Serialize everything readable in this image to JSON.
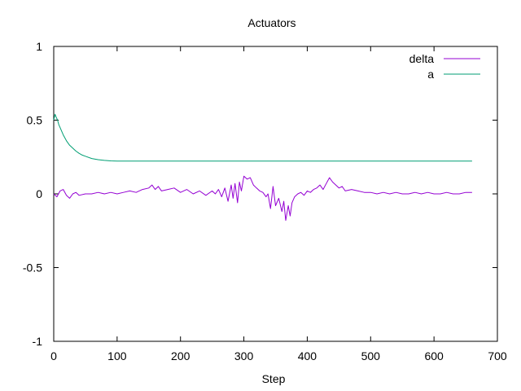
{
  "chart_data": {
    "type": "line",
    "title": "Actuators",
    "xlabel": "Step",
    "ylabel": "",
    "xlim": [
      0,
      700
    ],
    "ylim": [
      -1,
      1
    ],
    "xticks": [
      0,
      100,
      200,
      300,
      400,
      500,
      600,
      700
    ],
    "yticks": [
      -1,
      -0.5,
      0,
      0.5,
      1
    ],
    "xtick_labels": [
      "0",
      "100",
      "200",
      "300",
      "400",
      "500",
      "600",
      "700"
    ],
    "ytick_labels": [
      "-1",
      "-0.5",
      "0",
      "0.5",
      "1"
    ],
    "grid": false,
    "legend_position": "top-right",
    "series": [
      {
        "name": "delta",
        "color": "#9400d3",
        "x": [
          0,
          5,
          10,
          15,
          20,
          25,
          30,
          35,
          40,
          50,
          60,
          70,
          80,
          90,
          100,
          110,
          120,
          130,
          140,
          150,
          155,
          160,
          165,
          170,
          180,
          190,
          200,
          210,
          220,
          230,
          240,
          250,
          255,
          260,
          265,
          270,
          275,
          280,
          283,
          286,
          290,
          293,
          296,
          300,
          305,
          310,
          315,
          320,
          325,
          330,
          335,
          338,
          342,
          346,
          350,
          355,
          360,
          363,
          366,
          370,
          373,
          376,
          380,
          385,
          390,
          395,
          400,
          405,
          410,
          415,
          420,
          425,
          430,
          435,
          440,
          445,
          450,
          455,
          460,
          470,
          480,
          490,
          500,
          510,
          520,
          530,
          540,
          550,
          560,
          570,
          580,
          590,
          600,
          610,
          620,
          630,
          640,
          650,
          660
        ],
        "y": [
          0.0,
          -0.02,
          0.02,
          0.03,
          -0.01,
          -0.03,
          0.0,
          0.01,
          -0.01,
          0.0,
          0.0,
          0.01,
          0.0,
          0.01,
          0.0,
          0.01,
          0.02,
          0.01,
          0.03,
          0.04,
          0.06,
          0.03,
          0.05,
          0.02,
          0.03,
          0.04,
          0.01,
          0.03,
          0.0,
          0.02,
          -0.01,
          0.02,
          0.0,
          0.03,
          -0.02,
          0.04,
          -0.05,
          0.06,
          -0.03,
          0.07,
          -0.06,
          0.08,
          0.02,
          0.12,
          0.1,
          0.11,
          0.06,
          0.04,
          0.02,
          0.01,
          -0.02,
          0.0,
          -0.1,
          0.05,
          -0.08,
          -0.03,
          -0.12,
          -0.05,
          -0.18,
          -0.08,
          -0.15,
          -0.06,
          -0.02,
          0.0,
          0.01,
          -0.01,
          0.02,
          0.01,
          0.03,
          0.04,
          0.06,
          0.03,
          0.07,
          0.11,
          0.08,
          0.06,
          0.04,
          0.05,
          0.02,
          0.03,
          0.02,
          0.01,
          0.01,
          0.0,
          0.01,
          0.0,
          0.01,
          0.0,
          0.0,
          0.01,
          0.0,
          0.01,
          0.0,
          0.0,
          0.01,
          0.0,
          0.0,
          0.01,
          0.01
        ]
      },
      {
        "name": "a",
        "color": "#009e73",
        "x": [
          0,
          2,
          4,
          6,
          8,
          10,
          15,
          20,
          25,
          30,
          35,
          40,
          45,
          50,
          60,
          70,
          80,
          90,
          100,
          150,
          200,
          300,
          400,
          500,
          600,
          660
        ],
        "y": [
          0.5,
          0.54,
          0.52,
          0.5,
          0.47,
          0.45,
          0.4,
          0.36,
          0.33,
          0.31,
          0.29,
          0.275,
          0.263,
          0.255,
          0.24,
          0.232,
          0.227,
          0.224,
          0.222,
          0.222,
          0.222,
          0.222,
          0.222,
          0.222,
          0.222,
          0.222
        ]
      }
    ]
  }
}
